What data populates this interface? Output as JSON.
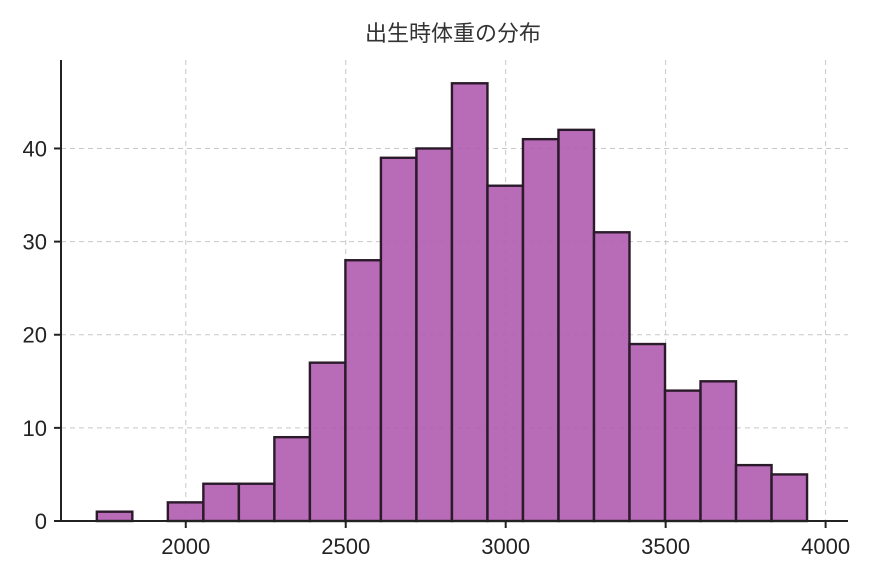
{
  "chart_data": {
    "type": "bar",
    "title": "出生時体重の分布",
    "xlabel": "",
    "ylabel": "",
    "xlim": [
      1610,
      4070
    ],
    "ylim": [
      0,
      49.5
    ],
    "xticks": [
      2000,
      2500,
      3000,
      3500,
      4000
    ],
    "yticks": [
      0,
      10,
      20,
      30,
      40
    ],
    "grid": true,
    "bin_width": 111,
    "bins": [
      {
        "x0": 1722,
        "x1": 1833,
        "count": 1
      },
      {
        "x0": 1833,
        "x1": 1944,
        "count": 0
      },
      {
        "x0": 1944,
        "x1": 2055,
        "count": 2
      },
      {
        "x0": 2055,
        "x1": 2166,
        "count": 4
      },
      {
        "x0": 2166,
        "x1": 2277,
        "count": 4
      },
      {
        "x0": 2277,
        "x1": 2388,
        "count": 9
      },
      {
        "x0": 2388,
        "x1": 2499,
        "count": 17
      },
      {
        "x0": 2499,
        "x1": 2610,
        "count": 28
      },
      {
        "x0": 2610,
        "x1": 2721,
        "count": 39
      },
      {
        "x0": 2721,
        "x1": 2832,
        "count": 40
      },
      {
        "x0": 2832,
        "x1": 2943,
        "count": 47
      },
      {
        "x0": 2943,
        "x1": 3054,
        "count": 36
      },
      {
        "x0": 3054,
        "x1": 3165,
        "count": 41
      },
      {
        "x0": 3165,
        "x1": 3276,
        "count": 42
      },
      {
        "x0": 3276,
        "x1": 3387,
        "count": 31
      },
      {
        "x0": 3387,
        "x1": 3498,
        "count": 19
      },
      {
        "x0": 3498,
        "x1": 3609,
        "count": 14
      },
      {
        "x0": 3609,
        "x1": 3720,
        "count": 15
      },
      {
        "x0": 3720,
        "x1": 3831,
        "count": 6
      },
      {
        "x0": 3831,
        "x1": 3942,
        "count": 5
      }
    ],
    "colors": {
      "bar_fill": "#b05cb0",
      "bar_edge": "#2a1a2a",
      "grid": "#c8c8c8",
      "axis": "#222222"
    }
  }
}
